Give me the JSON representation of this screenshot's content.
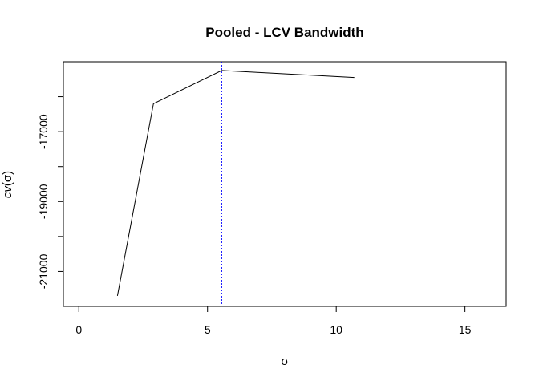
{
  "chart_data": {
    "type": "line",
    "title": "Pooled - LCV Bandwidth",
    "xlabel": "σ",
    "ylabel": {
      "main": "cv",
      "arg": "(σ)"
    },
    "xlim": [
      -0.6,
      16.6
    ],
    "ylim": [
      -22000,
      -15000
    ],
    "x_ticks": [
      0,
      5,
      10,
      15
    ],
    "x_tick_labels": [
      "0",
      "5",
      "10",
      "15"
    ],
    "y_ticks": [
      -21000,
      -20000,
      -19000,
      -18000,
      -17000,
      -16000
    ],
    "y_tick_labels": [
      "-21000",
      "",
      "-19000",
      "",
      "-17000",
      ""
    ],
    "series": [
      {
        "color": "#000000",
        "x": [
          1.5,
          2.9,
          5.55,
          10.7
        ],
        "y": [
          -21700,
          -16200,
          -15250,
          -15450
        ]
      }
    ],
    "vline": {
      "x": 5.55,
      "color": "#0000ff",
      "style": "dotted"
    },
    "grid": false,
    "legend": "none"
  }
}
